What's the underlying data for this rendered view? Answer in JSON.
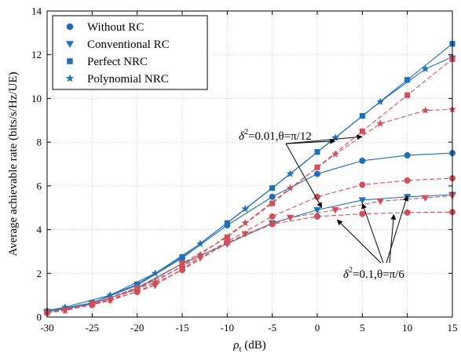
{
  "chart_data": {
    "type": "line",
    "xlabel_main": "ρ",
    "xlabel_sub": "t",
    "xlabel_unit": " (dB)",
    "ylabel": "Average achievable rate (bits/s/Hz/UE)",
    "xlim": [
      -30,
      15
    ],
    "ylim": [
      0,
      14
    ],
    "xticks": [
      -30,
      -25,
      -20,
      -15,
      -10,
      -5,
      0,
      5,
      10,
      15
    ],
    "yticks": [
      0,
      2,
      4,
      6,
      8,
      10,
      12,
      14
    ],
    "grid": true,
    "legend_position": "top-left",
    "colors": {
      "blue": "#1f6fb4",
      "red": "#d0505a"
    },
    "legend": [
      {
        "label": "Without RC",
        "marker": "circle"
      },
      {
        "label": "Conventional RC",
        "marker": "triangle-down"
      },
      {
        "label": "Perfect NRC",
        "marker": "square"
      },
      {
        "label": "Polynomial NRC",
        "marker": "star"
      }
    ],
    "series": [
      {
        "case": "a",
        "color": "blue",
        "dash": false,
        "marker": "circle",
        "x": [
          -30,
          -25,
          -20,
          -15,
          -10,
          -5,
          0,
          5,
          10,
          15
        ],
        "y": [
          0.25,
          0.65,
          1.45,
          2.7,
          4.2,
          5.5,
          6.55,
          7.15,
          7.4,
          7.5
        ]
      },
      {
        "case": "a",
        "color": "blue",
        "dash": false,
        "marker": "square",
        "x": [
          -30,
          -25,
          -20,
          -15,
          -10,
          -5,
          0,
          5,
          10,
          15
        ],
        "y": [
          0.25,
          0.65,
          1.5,
          2.75,
          4.3,
          5.9,
          7.55,
          9.2,
          10.85,
          12.5
        ]
      },
      {
        "case": "a",
        "color": "blue",
        "dash": false,
        "marker": "star",
        "x": [
          -30,
          -28,
          -23,
          -18,
          -13,
          -8,
          -3,
          2,
          7,
          12,
          15
        ],
        "y": [
          0.3,
          0.45,
          1.0,
          2.0,
          3.35,
          4.95,
          6.55,
          8.2,
          9.85,
          11.35,
          11.9
        ]
      },
      {
        "case": "b",
        "color": "blue",
        "dash": false,
        "marker": "triangle-down",
        "x": [
          -30,
          -25,
          -20,
          -15,
          -10,
          -5,
          0,
          5,
          10,
          15
        ],
        "y": [
          0.25,
          0.6,
          1.3,
          2.45,
          3.35,
          4.3,
          4.9,
          5.35,
          5.5,
          5.6
        ]
      },
      {
        "case": "a",
        "color": "red",
        "dash": true,
        "marker": "circle",
        "x": [
          -30,
          -25,
          -20,
          -15,
          -10,
          -5,
          0,
          5,
          10,
          15
        ],
        "y": [
          0.2,
          0.6,
          1.3,
          2.3,
          3.45,
          4.6,
          5.5,
          6.05,
          6.25,
          6.35
        ]
      },
      {
        "case": "a",
        "color": "red",
        "dash": true,
        "marker": "square",
        "x": [
          -30,
          -25,
          -20,
          -15,
          -10,
          -5,
          0,
          5,
          10,
          15
        ],
        "y": [
          0.2,
          0.6,
          1.35,
          2.45,
          3.65,
          5.2,
          6.85,
          8.5,
          10.15,
          11.8
        ]
      },
      {
        "case": "a",
        "color": "red",
        "dash": true,
        "marker": "star",
        "x": [
          -30,
          -28,
          -23,
          -18,
          -13,
          -8,
          -3,
          2,
          7,
          12,
          15
        ],
        "y": [
          0.2,
          0.3,
          0.8,
          1.6,
          2.85,
          4.3,
          5.9,
          7.45,
          8.85,
          9.45,
          9.5
        ]
      },
      {
        "case": "b",
        "color": "red",
        "dash": true,
        "marker": "circle",
        "x": [
          -30,
          -25,
          -20,
          -15,
          -10,
          -5,
          0,
          5,
          10,
          15
        ],
        "y": [
          0.2,
          0.55,
          1.15,
          2.15,
          3.4,
          4.25,
          4.6,
          4.72,
          4.78,
          4.8
        ]
      },
      {
        "case": "b",
        "color": "red",
        "dash": true,
        "marker": "triangle-down",
        "x": [
          -30,
          -28,
          -23,
          -18,
          -13,
          -8,
          -3,
          2,
          7,
          12,
          15
        ],
        "y": [
          0.2,
          0.3,
          0.75,
          1.45,
          2.7,
          3.8,
          4.55,
          4.9,
          5.3,
          5.45,
          5.55
        ]
      }
    ],
    "annotations": [
      {
        "id": "case-a",
        "text_main": "δ",
        "text_sup": "2",
        "text_rest": "=0.01,θ=π/12",
        "arrow_targets": [
          [
            2,
            8.05
          ],
          [
            0.5,
            5.0
          ],
          [
            5,
            8.25
          ]
        ]
      },
      {
        "id": "case-b",
        "text_main": "δ",
        "text_sup": "2",
        "text_rest": "=0.1,θ=π/6",
        "arrow_targets": [
          [
            5,
            5.2
          ],
          [
            2.2,
            4.45
          ],
          [
            10,
            5.55
          ],
          [
            8.5,
            4.7
          ]
        ]
      }
    ]
  }
}
